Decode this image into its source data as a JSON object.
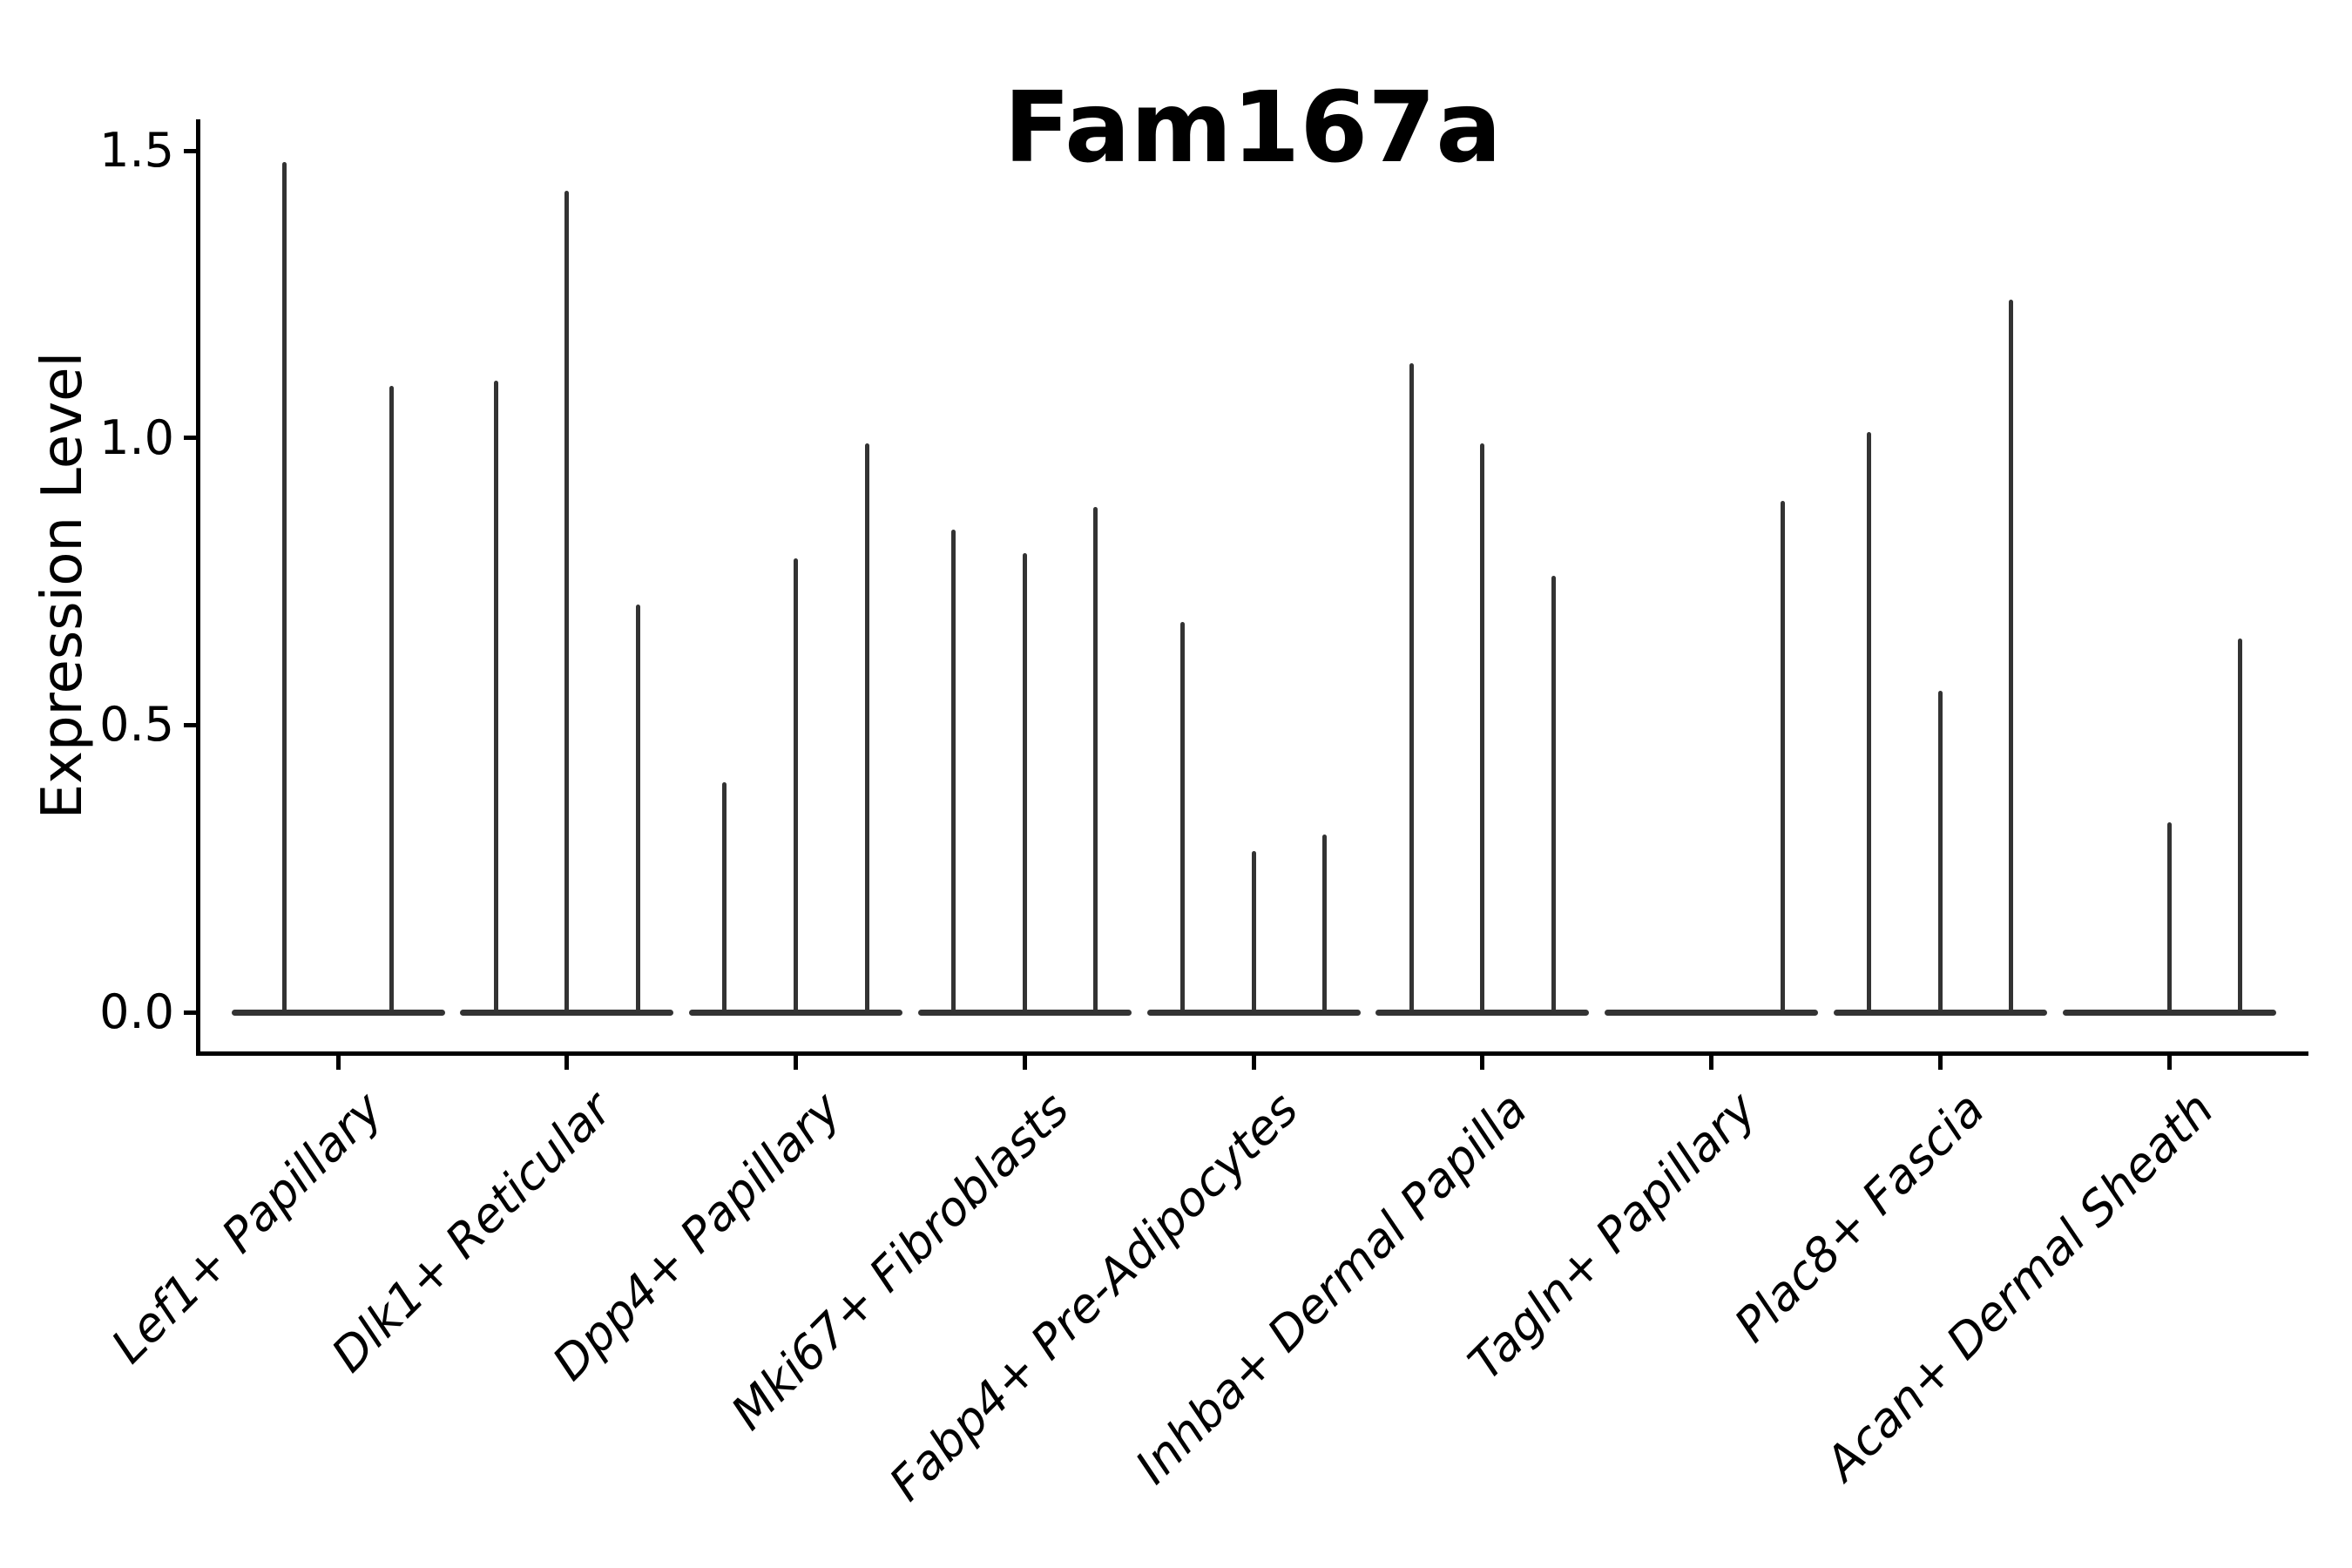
{
  "title": "Fam167a",
  "chart_data": {
    "type": "violin",
    "title": "Fam167a",
    "xlabel": "",
    "ylabel": "Expression Level",
    "ylim": [
      -0.07,
      1.55
    ],
    "grid": false,
    "legend": "none",
    "yticks": [
      {
        "value": 0.0,
        "label": "0.0"
      },
      {
        "value": 0.5,
        "label": "0.5"
      },
      {
        "value": 1.0,
        "label": "1.0"
      },
      {
        "value": 1.5,
        "label": "1.5"
      }
    ],
    "categories": [
      "Lef1+ Papillary",
      "Dlk1+ Reticular",
      "Dpp4+ Papillary",
      "Mki67+ Fibroblasts",
      "Fabp4+ Pre-Adipocytes",
      "Inhba+ Dermal Papilla",
      "Tagln+ Papillary",
      "Plac8+ Fascia",
      "Acan+ Dermal Sheath"
    ],
    "description": "Violin plot; each category holds 2-3 very thin violins: a flat base at expression 0 plus a narrow spike rising to the listed maximum expression value. Zero means that violin is flat (no spike).",
    "groups": [
      {
        "category": "Lef1+ Papillary",
        "violin_maxima": [
          1.48,
          1.09
        ]
      },
      {
        "category": "Dlk1+ Reticular",
        "violin_maxima": [
          1.1,
          1.43,
          0.71
        ]
      },
      {
        "category": "Dpp4+ Papillary",
        "violin_maxima": [
          0.4,
          0.79,
          0.99
        ]
      },
      {
        "category": "Mki67+ Fibroblasts",
        "violin_maxima": [
          0.84,
          0.8,
          0.88
        ]
      },
      {
        "category": "Fabp4+ Pre-Adipocytes",
        "violin_maxima": [
          0.68,
          0.28,
          0.31
        ]
      },
      {
        "category": "Inhba+ Dermal Papilla",
        "violin_maxima": [
          1.13,
          0.99,
          0.76
        ]
      },
      {
        "category": "Tagln+ Papillary",
        "violin_maxima": [
          0,
          0,
          0.89
        ]
      },
      {
        "category": "Plac8+ Fascia",
        "violin_maxima": [
          1.01,
          0.56,
          1.24
        ]
      },
      {
        "category": "Acan+ Dermal Sheath",
        "violin_maxima": [
          0,
          0.33,
          0.65
        ]
      }
    ],
    "colors": {
      "violin": "#333333",
      "axis": "#000000",
      "text": "#000000",
      "background": "#ffffff"
    }
  }
}
